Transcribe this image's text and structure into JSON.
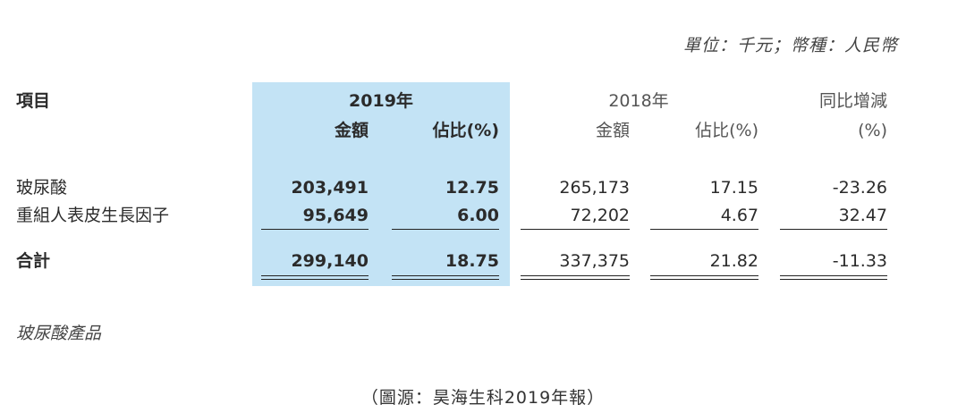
{
  "unit_note": "單位：千元；幣種：人民幣",
  "header": {
    "item": "項目",
    "year_2019": "2019年",
    "year_2018": "2018年",
    "yoy": "同比增減",
    "amount": "金額",
    "share": "佔比(%)",
    "yoy_unit": "(%)"
  },
  "rows": [
    {
      "name": "玻尿酸",
      "a2019": "203,491",
      "s2019": "12.75",
      "a2018": "265,173",
      "s2018": "17.15",
      "yoy": "-23.26"
    },
    {
      "name": "重組人表皮生長因子",
      "a2019": "95,649",
      "s2019": "6.00",
      "a2018": "72,202",
      "s2018": "4.67",
      "yoy": "32.47"
    }
  ],
  "total": {
    "name": "合計",
    "a2019": "299,140",
    "s2019": "18.75",
    "a2018": "337,375",
    "s2018": "21.82",
    "yoy": "-11.33"
  },
  "subheading": "玻尿酸產品",
  "source": "（圖源：昊海生科2019年報）"
}
